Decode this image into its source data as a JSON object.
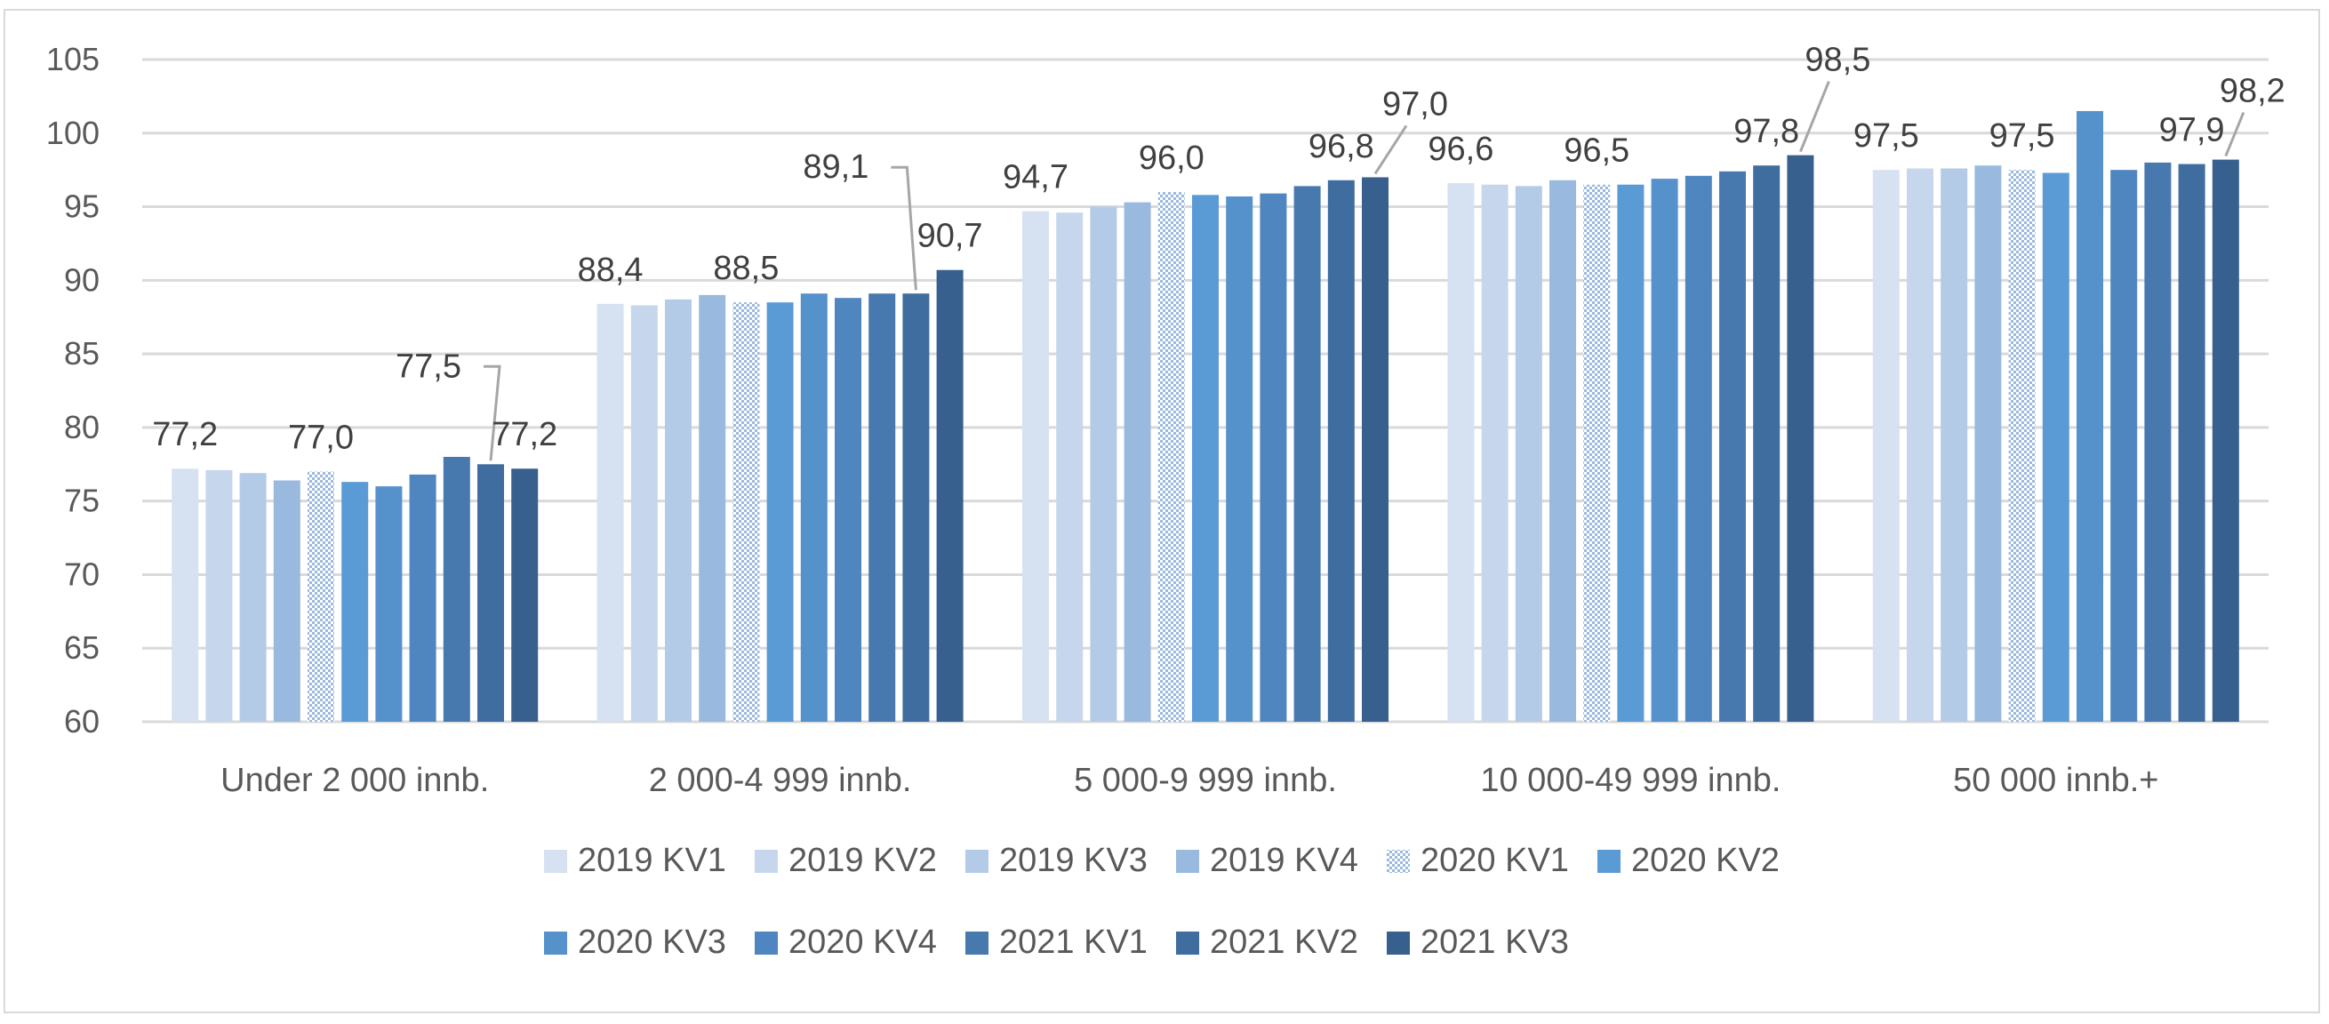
{
  "chart_data": {
    "type": "bar",
    "title": "",
    "xlabel": "",
    "ylabel": "",
    "ylim": [
      60,
      105
    ],
    "yticks": [
      60,
      65,
      70,
      75,
      80,
      85,
      90,
      95,
      100,
      105
    ],
    "grid": true,
    "legend_position": "bottom",
    "categories": [
      "Under 2 000 innb.",
      "2 000-4 999 innb.",
      "5 000-9 999 innb.",
      "10 000-49 999 innb.",
      "50 000 innb.+"
    ],
    "series": [
      {
        "name": "2019 KV1",
        "color": "#d6e2f1",
        "pattern": false,
        "values": [
          77.2,
          88.4,
          94.7,
          96.6,
          97.5
        ]
      },
      {
        "name": "2019 KV2",
        "color": "#c6d7ed",
        "pattern": false,
        "values": [
          77.1,
          88.3,
          94.6,
          96.5,
          97.6
        ]
      },
      {
        "name": "2019 KV3",
        "color": "#b4cbe7",
        "pattern": false,
        "values": [
          76.9,
          88.7,
          95.0,
          96.4,
          97.6
        ]
      },
      {
        "name": "2019 KV4",
        "color": "#9ab9df",
        "pattern": false,
        "values": [
          76.4,
          89.0,
          95.3,
          96.8,
          97.8
        ]
      },
      {
        "name": "2020 KV1",
        "color": "#b4cbe7",
        "pattern": true,
        "values": [
          77.0,
          88.5,
          96.0,
          96.5,
          97.5
        ]
      },
      {
        "name": "2020 KV2",
        "color": "#5b9bd5",
        "pattern": false,
        "values": [
          76.3,
          88.5,
          95.8,
          96.5,
          97.3
        ]
      },
      {
        "name": "2020 KV3",
        "color": "#5591cb",
        "pattern": false,
        "values": [
          76.0,
          89.1,
          95.7,
          96.9,
          101.5
        ]
      },
      {
        "name": "2020 KV4",
        "color": "#4f86bf",
        "pattern": false,
        "values": [
          76.8,
          88.8,
          95.9,
          97.1,
          97.5
        ]
      },
      {
        "name": "2021 KV1",
        "color": "#4779af",
        "pattern": false,
        "values": [
          78.0,
          89.1,
          96.4,
          97.4,
          98.0
        ]
      },
      {
        "name": "2021 KV2",
        "color": "#3f6d9f",
        "pattern": false,
        "values": [
          77.5,
          89.1,
          96.8,
          97.8,
          97.9
        ]
      },
      {
        "name": "2021 KV3",
        "color": "#37608e",
        "pattern": false,
        "values": [
          77.2,
          90.7,
          97.0,
          98.5,
          98.2
        ]
      }
    ],
    "data_labels": [
      {
        "category": 0,
        "series": 0,
        "text": "77,2"
      },
      {
        "category": 0,
        "series": 4,
        "text": "77,0"
      },
      {
        "category": 0,
        "series": 9,
        "text": "77,5"
      },
      {
        "category": 0,
        "series": 10,
        "text": "77,2"
      },
      {
        "category": 1,
        "series": 0,
        "text": "88,4"
      },
      {
        "category": 1,
        "series": 4,
        "text": "88,5"
      },
      {
        "category": 1,
        "series": 9,
        "text": "89,1"
      },
      {
        "category": 1,
        "series": 10,
        "text": "90,7"
      },
      {
        "category": 2,
        "series": 0,
        "text": "94,7"
      },
      {
        "category": 2,
        "series": 4,
        "text": "96,0"
      },
      {
        "category": 2,
        "series": 9,
        "text": "96,8"
      },
      {
        "category": 2,
        "series": 10,
        "text": "97,0"
      },
      {
        "category": 3,
        "series": 0,
        "text": "96,6"
      },
      {
        "category": 3,
        "series": 4,
        "text": "96,5"
      },
      {
        "category": 3,
        "series": 9,
        "text": "97,8"
      },
      {
        "category": 3,
        "series": 10,
        "text": "98,5"
      },
      {
        "category": 4,
        "series": 0,
        "text": "97,5"
      },
      {
        "category": 4,
        "series": 4,
        "text": "97,5"
      },
      {
        "category": 4,
        "series": 9,
        "text": "97,9"
      },
      {
        "category": 4,
        "series": 10,
        "text": "98,2"
      }
    ]
  }
}
